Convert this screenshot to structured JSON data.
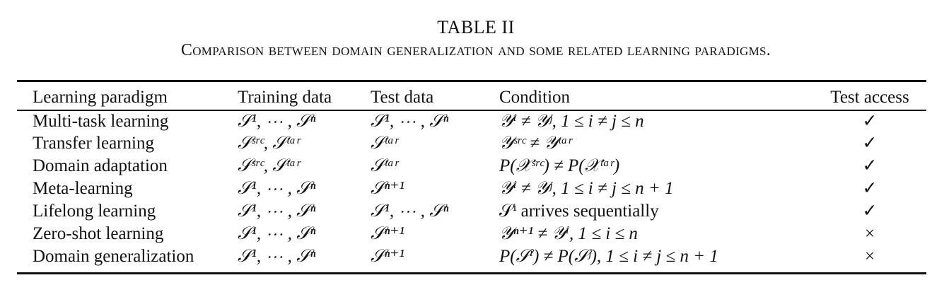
{
  "caption": {
    "label": "TABLE II",
    "text": "Comparison between domain generalization and some related learning paradigms."
  },
  "table": {
    "headers": [
      "Learning paradigm",
      "Training data",
      "Test data",
      "Condition",
      "Test access"
    ],
    "rows": [
      [
        "Multi-task learning",
        "𝒮¹, ⋯ , 𝒮ⁿ",
        "𝒮¹, ⋯ , 𝒮ⁿ",
        "𝒴ⁱ ≠ 𝒴ʲ, 1 ≤ i ≠ j ≤ n",
        "✓"
      ],
      [
        "Transfer learning",
        "𝒮ˢʳᶜ, 𝒮ᵗᵃʳ",
        "𝒮ᵗᵃʳ",
        "𝒴ˢʳᶜ ≠ 𝒴ᵗᵃʳ",
        "✓"
      ],
      [
        "Domain adaptation",
        "𝒮ˢʳᶜ, 𝒮ᵗᵃʳ",
        "𝒮ᵗᵃʳ",
        "P(𝒳ˢʳᶜ) ≠ P(𝒳ᵗᵃʳ)",
        "✓"
      ],
      [
        "Meta-learning",
        "𝒮¹, ⋯ , 𝒮ⁿ",
        "𝒮ⁿ⁺¹",
        "𝒴ⁱ ≠ 𝒴ʲ, 1 ≤ i ≠ j ≤ n + 1",
        "✓"
      ],
      [
        "Lifelong learning",
        "𝒮¹, ⋯ , 𝒮ⁿ",
        "𝒮¹, ⋯ , 𝒮ⁿ",
        "𝒮ⁱ arrives sequentially",
        "✓"
      ],
      [
        "Zero-shot learning",
        "𝒮¹, ⋯ , 𝒮ⁿ",
        "𝒮ⁿ⁺¹",
        "𝒴ⁿ⁺¹ ≠ 𝒴ⁱ, 1 ≤ i ≤ n",
        "×"
      ],
      [
        "Domain generalization",
        "𝒮¹, ⋯ , 𝒮ⁿ",
        "𝒮ⁿ⁺¹",
        "P(𝒮ⁱ) ≠ P(𝒮ʲ), 1 ≤ i ≠ j ≤ n + 1",
        "×"
      ]
    ]
  }
}
